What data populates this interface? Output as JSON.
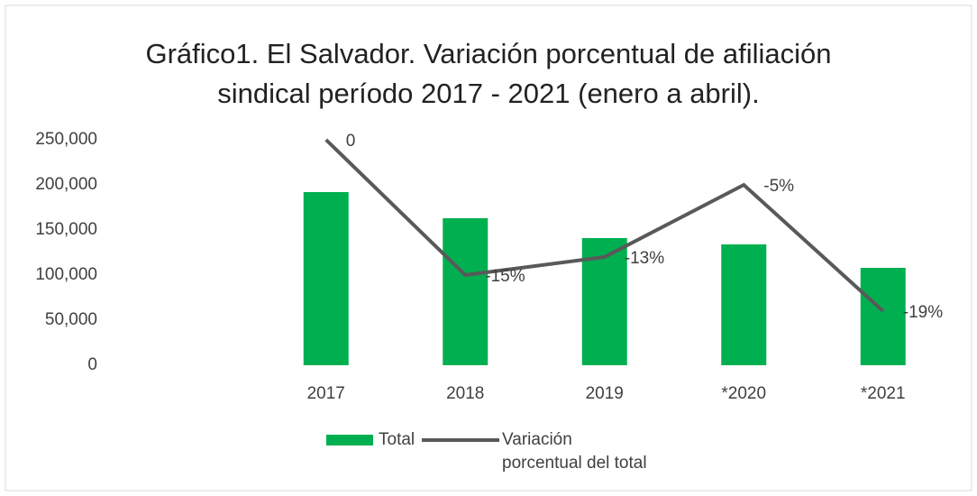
{
  "chart_data": {
    "type": "bar",
    "title": "Gráfico1. El Salvador. Variación porcentual de afiliación sindical  período 2017 - 2021 (enero a abril).",
    "categories": [
      null,
      "2017",
      "2018",
      "2019",
      "*2020",
      "*2021"
    ],
    "series": [
      {
        "name": "Total",
        "type": "bar",
        "color": "#00b050",
        "values": [
          null,
          192000,
          163000,
          141000,
          134000,
          108000
        ]
      },
      {
        "name": "Variación porcentual del total",
        "type": "line",
        "axis": "y2",
        "color": "#595959",
        "values": [
          null,
          0,
          -15,
          -13,
          -5,
          -19
        ],
        "value_labels": [
          null,
          "0",
          "-15%",
          "-13%",
          "-5%",
          "-19%"
        ]
      }
    ],
    "ylim": [
      0,
      250000
    ],
    "yticks": [
      0,
      {
        "value": 50000,
        "label": "50,000"
      },
      {
        "value": 100000,
        "label": "100,000"
      },
      {
        "value": 150000,
        "label": "150,000"
      },
      {
        "value": 200000,
        "label": "200,000"
      },
      {
        "value": 250000,
        "label": "250,000"
      }
    ],
    "y2lim": [
      -25,
      0
    ],
    "grid": false,
    "legend": "bottom"
  }
}
